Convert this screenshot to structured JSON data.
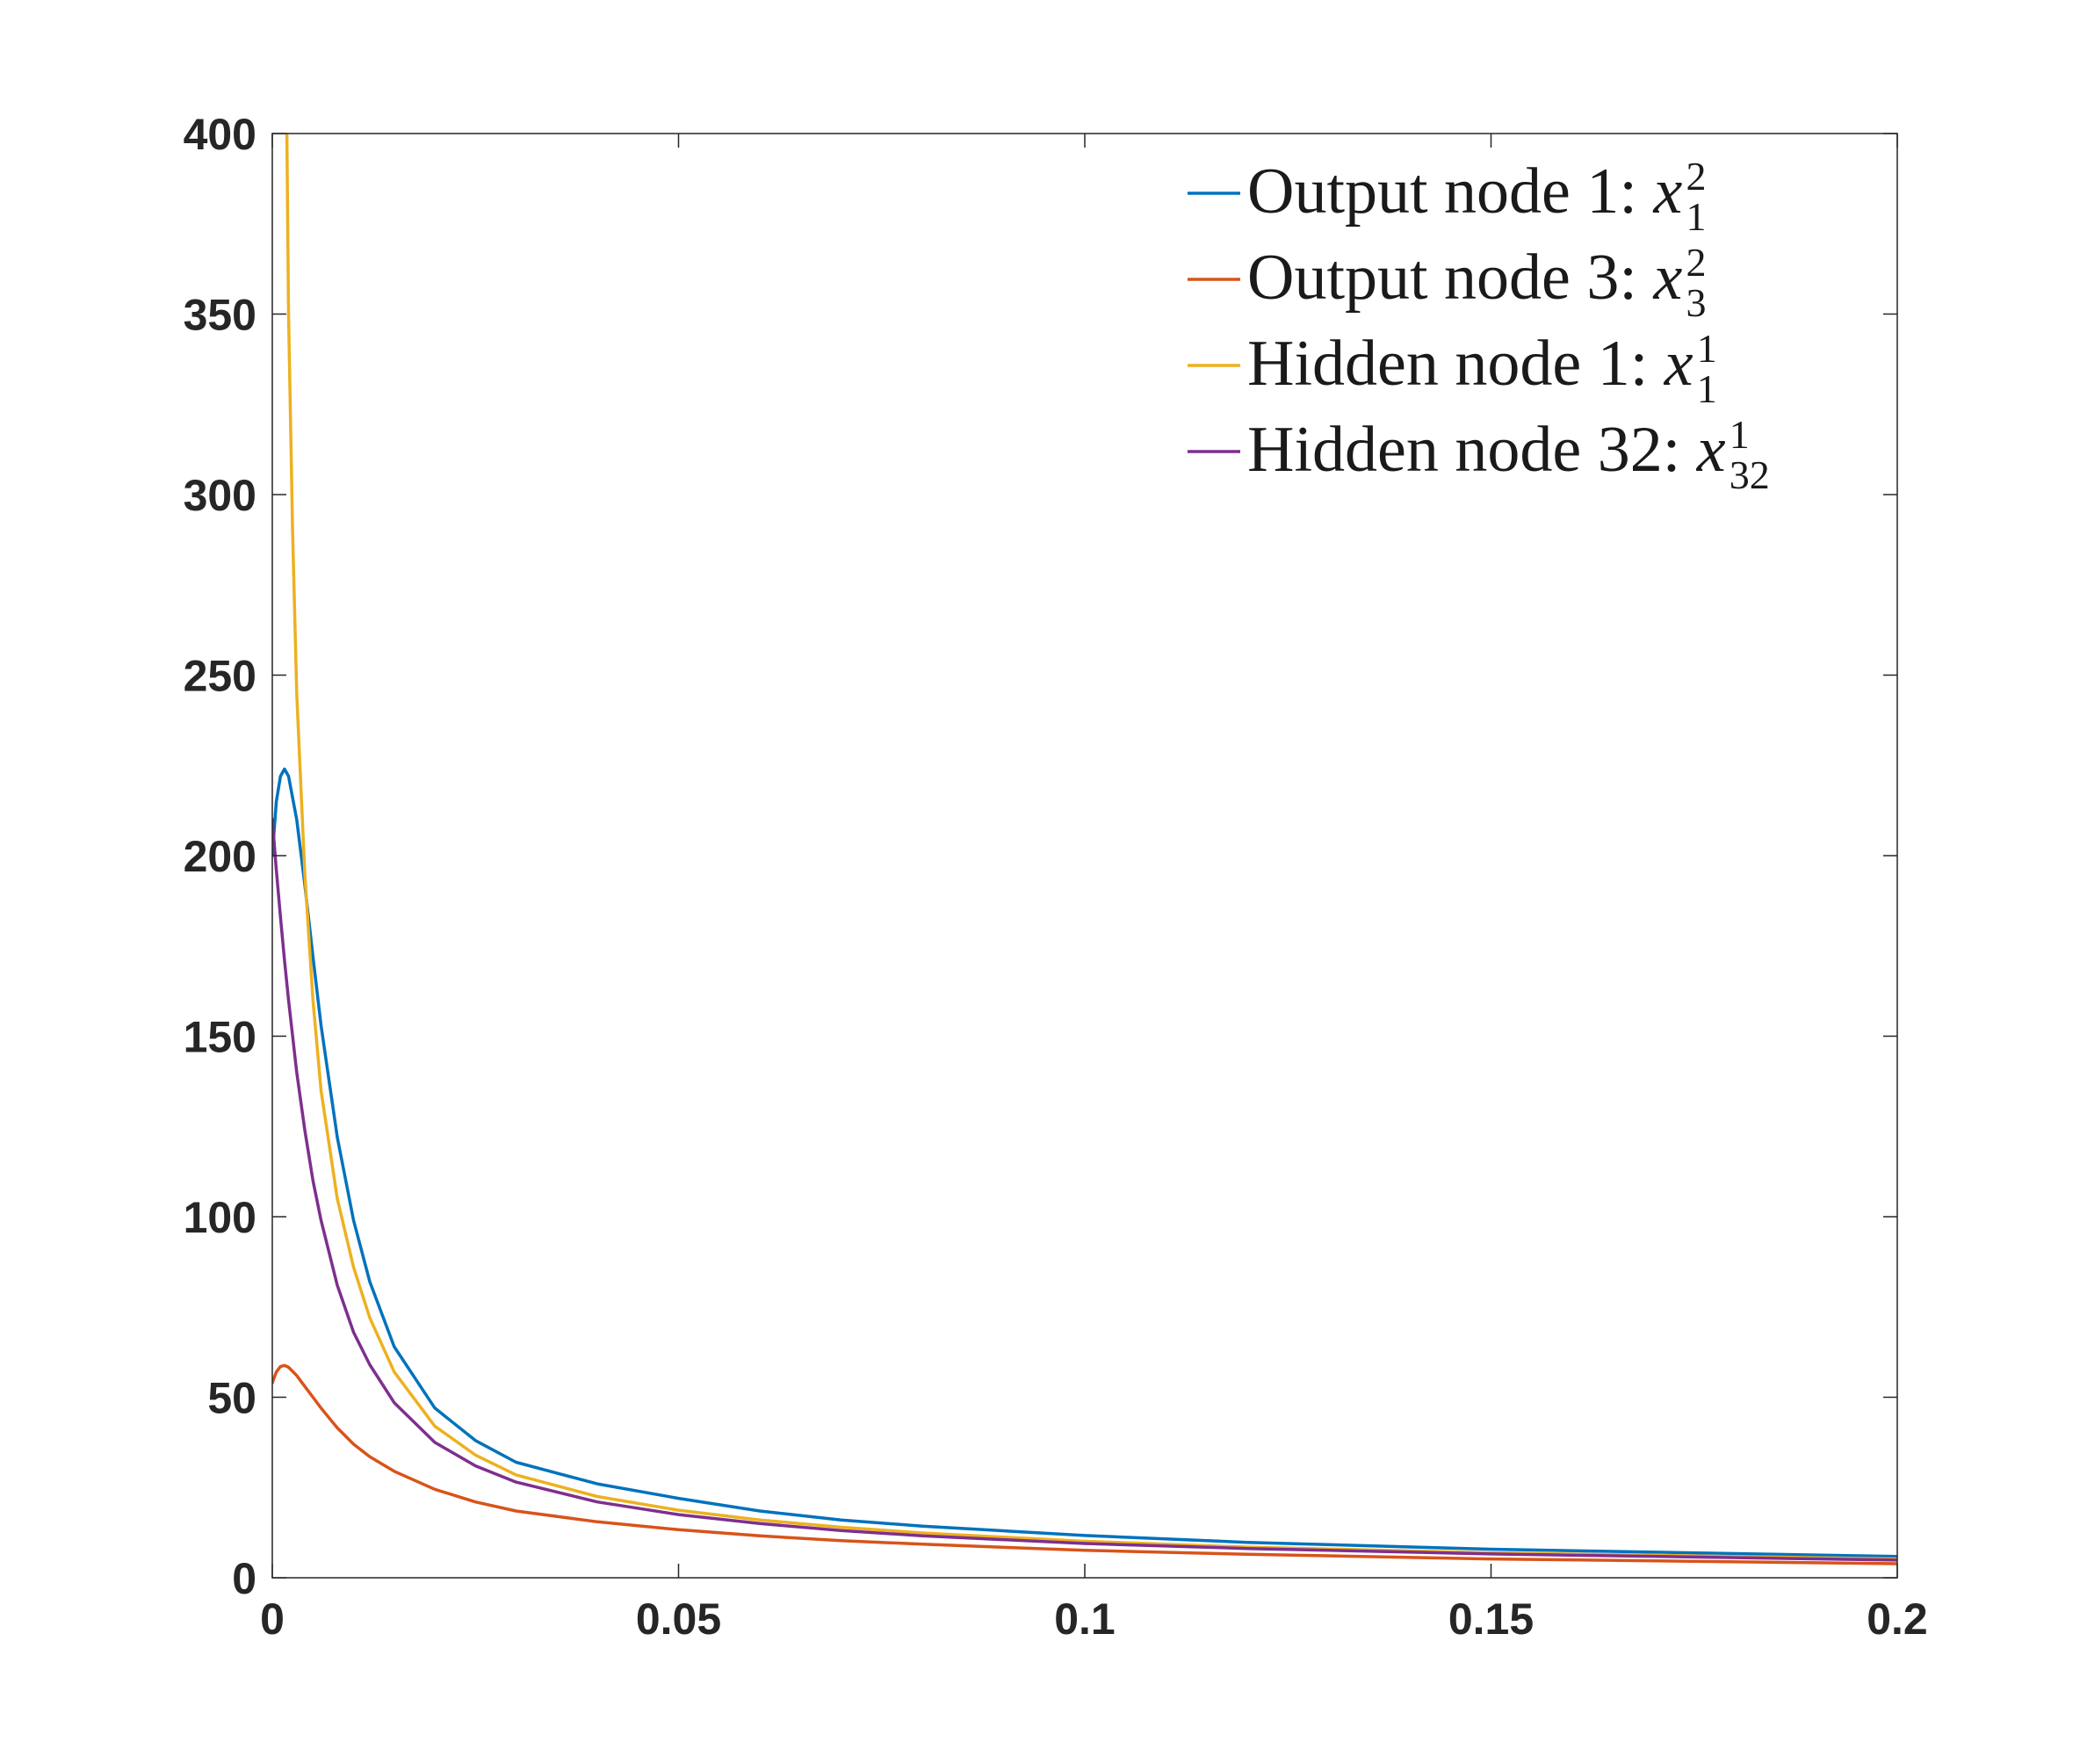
{
  "chart_data": {
    "type": "line",
    "title": "",
    "xlabel": "",
    "ylabel": "",
    "xlim": [
      0,
      0.2
    ],
    "ylim": [
      0,
      400
    ],
    "xticks": [
      0,
      0.05,
      0.1,
      0.15,
      0.2
    ],
    "xtick_labels": [
      "0",
      "0.05",
      "0.1",
      "0.15",
      "0.2"
    ],
    "yticks": [
      0,
      50,
      100,
      150,
      200,
      250,
      300,
      350,
      400
    ],
    "ytick_labels": [
      "0",
      "50",
      "100",
      "150",
      "200",
      "250",
      "300",
      "350",
      "400"
    ],
    "grid": false,
    "legend_position": "top-right",
    "series": [
      {
        "name": "Output node 1: x",
        "math_sup": "2",
        "math_sub": "1",
        "color": "#0072BD",
        "x": [
          0,
          0.0005,
          0.001,
          0.0015,
          0.002,
          0.003,
          0.004,
          0.005,
          0.006,
          0.008,
          0.01,
          0.012,
          0.015,
          0.02,
          0.025,
          0.03,
          0.04,
          0.05,
          0.06,
          0.07,
          0.08,
          0.1,
          0.12,
          0.15,
          0.2
        ],
        "y": [
          200,
          215,
          222,
          224,
          222,
          210,
          192,
          172,
          153,
          122,
          99,
          82,
          64,
          47,
          38,
          32,
          26,
          22,
          18.5,
          16,
          14.3,
          11.7,
          9.8,
          7.9,
          5.9
        ]
      },
      {
        "name": "Output node 3: x",
        "math_sup": "2",
        "math_sub": "3",
        "color": "#D95319",
        "x": [
          0,
          0.0005,
          0.001,
          0.0015,
          0.002,
          0.003,
          0.004,
          0.005,
          0.006,
          0.008,
          0.01,
          0.012,
          0.015,
          0.02,
          0.025,
          0.03,
          0.04,
          0.05,
          0.06,
          0.07,
          0.08,
          0.1,
          0.12,
          0.15,
          0.2
        ],
        "y": [
          54,
          57,
          58.5,
          58.8,
          58.3,
          56,
          53,
          50,
          47,
          41.5,
          37,
          33.5,
          29.5,
          24.5,
          21,
          18.5,
          15.5,
          13.3,
          11.6,
          10.3,
          9.3,
          7.6,
          6.5,
          5.2,
          3.9
        ]
      },
      {
        "name": "Hidden node 1: x",
        "math_sup": "1",
        "math_sub": "1",
        "color": "#EDB120",
        "x": [
          0.0018,
          0.002,
          0.0025,
          0.003,
          0.004,
          0.005,
          0.006,
          0.008,
          0.01,
          0.012,
          0.015,
          0.02,
          0.025,
          0.03,
          0.04,
          0.05,
          0.06,
          0.07,
          0.08,
          0.1,
          0.12,
          0.15,
          0.2
        ],
        "y": [
          400,
          350,
          290,
          245,
          195,
          160,
          135,
          105,
          86,
          72,
          57,
          42,
          34,
          28.5,
          22.5,
          18.7,
          16,
          14,
          12.4,
          10.1,
          8.5,
          6.9,
          5.2
        ]
      },
      {
        "name": "Hidden node 32: x",
        "math_sup": "1",
        "math_sub": "32",
        "color": "#7E2F8E",
        "x": [
          0,
          0.0005,
          0.001,
          0.0015,
          0.002,
          0.003,
          0.004,
          0.005,
          0.006,
          0.008,
          0.01,
          0.012,
          0.015,
          0.02,
          0.025,
          0.03,
          0.04,
          0.05,
          0.06,
          0.07,
          0.08,
          0.1,
          0.12,
          0.15,
          0.2
        ],
        "y": [
          210,
          196,
          183,
          171,
          160,
          140,
          124,
          110,
          99,
          81,
          68,
          59,
          48.5,
          37.5,
          31,
          26.5,
          21,
          17.5,
          15,
          13.1,
          11.6,
          9.5,
          8.1,
          6.6,
          4.9
        ]
      }
    ]
  }
}
